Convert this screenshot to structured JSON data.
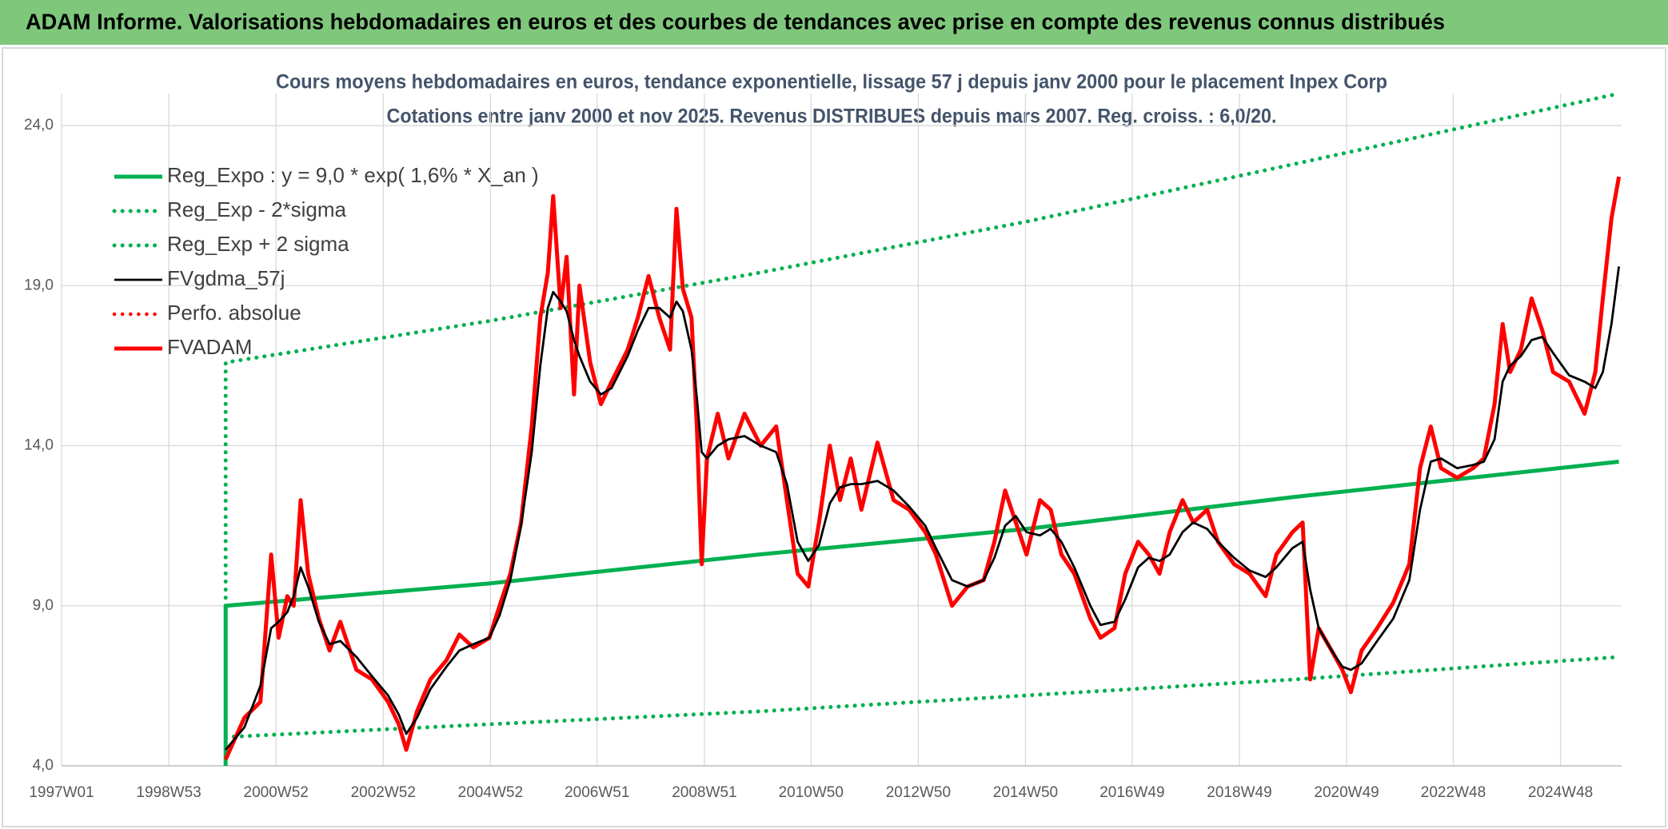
{
  "chart_data": {
    "type": "line",
    "title": "ADAM Informe. Valorisations hebdomadaires en euros et des courbes de tendances avec prise en compte des revenus connus distribués",
    "subtitle": [
      "Cours moyens hebdomadaires en euros, tendance exponentielle, lissage 57 j depuis janv 2000 pour le placement Inpex Corp",
      "Cotations entre janv 2000 et nov 2025. Revenus DISTRIBUES depuis mars 2007. Reg. croiss. : 6,0/20."
    ],
    "xlim": [
      1997,
      2026.1
    ],
    "xticks": [
      {
        "value": 1997.0,
        "label": "1997W01"
      },
      {
        "value": 1999.0,
        "label": "1998W53"
      },
      {
        "value": 2001.0,
        "label": "2000W52"
      },
      {
        "value": 2003.0,
        "label": "2002W52"
      },
      {
        "value": 2005.0,
        "label": "2004W52"
      },
      {
        "value": 2006.99,
        "label": "2006W51"
      },
      {
        "value": 2008.99,
        "label": "2008W51"
      },
      {
        "value": 2010.98,
        "label": "2010W50"
      },
      {
        "value": 2012.98,
        "label": "2012W50"
      },
      {
        "value": 2014.98,
        "label": "2014W50"
      },
      {
        "value": 2016.97,
        "label": "2016W49"
      },
      {
        "value": 2018.97,
        "label": "2018W49"
      },
      {
        "value": 2020.97,
        "label": "2020W49"
      },
      {
        "value": 2022.96,
        "label": "2022W48"
      },
      {
        "value": 2024.96,
        "label": "2024W48"
      }
    ],
    "ylim": [
      4,
      25
    ],
    "yticks": [
      {
        "value": 4,
        "label": "4,0"
      },
      {
        "value": 9,
        "label": "9,0"
      },
      {
        "value": 14,
        "label": "14,0"
      },
      {
        "value": 19,
        "label": "19,0"
      },
      {
        "value": 24,
        "label": "24,0"
      }
    ],
    "grid": true,
    "legend": "upper left",
    "series": [
      {
        "name": "Reg_Expo : y = 9,0 * exp( 1,6% *  X_an )",
        "color": "#00b050",
        "style": "solid",
        "x": [
          2000.06,
          2000.06,
          2005,
          2010,
          2015,
          2020,
          2026.05
        ],
        "values": [
          4.0,
          9.0,
          9.7,
          10.6,
          11.4,
          12.4,
          13.5
        ]
      },
      {
        "name": "Reg_Exp - 2*sigma",
        "color": "#00b050",
        "style": "dotted",
        "x": [
          2000.06,
          2005,
          2010,
          2015,
          2020,
          2026.05
        ],
        "values": [
          4.9,
          5.3,
          5.7,
          6.2,
          6.7,
          7.4
        ]
      },
      {
        "name": "Reg_Exp + 2 sigma",
        "color": "#00b050",
        "style": "dotted",
        "x": [
          2000.06,
          2000.06,
          2005,
          2010,
          2015,
          2020,
          2026.05
        ],
        "values": [
          9.0,
          16.6,
          17.9,
          19.4,
          21.0,
          22.8,
          25.0
        ]
      },
      {
        "name": "FVgdma_57j",
        "color": "#000000",
        "style": "solid",
        "x": [
          2000.06,
          2000.41,
          2000.71,
          2000.91,
          2001.05,
          2001.21,
          2001.33,
          2001.46,
          2001.6,
          2001.8,
          2002.0,
          2002.2,
          2002.5,
          2002.79,
          2003.09,
          2003.29,
          2003.43,
          2003.63,
          2003.88,
          2004.18,
          2004.42,
          2004.68,
          2004.98,
          2005.17,
          2005.37,
          2005.57,
          2005.77,
          2005.93,
          2006.07,
          2006.17,
          2006.31,
          2006.42,
          2006.56,
          2006.66,
          2006.86,
          2007.06,
          2007.26,
          2007.56,
          2007.75,
          2007.95,
          2008.15,
          2008.35,
          2008.47,
          2008.59,
          2008.75,
          2008.85,
          2008.94,
          2009.04,
          2009.24,
          2009.44,
          2009.74,
          2010.04,
          2010.33,
          2010.53,
          2010.73,
          2010.93,
          2011.13,
          2011.33,
          2011.52,
          2011.72,
          2011.92,
          2012.22,
          2012.52,
          2012.81,
          2013.11,
          2013.31,
          2013.61,
          2013.9,
          2014.2,
          2014.4,
          2014.6,
          2014.8,
          2015.0,
          2015.25,
          2015.45,
          2015.65,
          2015.89,
          2016.19,
          2016.38,
          2016.64,
          2016.84,
          2017.08,
          2017.28,
          2017.48,
          2017.67,
          2017.91,
          2018.11,
          2018.37,
          2018.57,
          2018.87,
          2019.16,
          2019.46,
          2019.66,
          2019.96,
          2020.15,
          2020.29,
          2020.45,
          2020.69,
          2020.89,
          2021.05,
          2021.25,
          2021.54,
          2021.84,
          2022.14,
          2022.34,
          2022.54,
          2022.73,
          2023.03,
          2023.33,
          2023.53,
          2023.73,
          2023.88,
          2024.02,
          2024.22,
          2024.42,
          2024.62,
          2024.82,
          2025.12,
          2025.41,
          2025.61,
          2025.75,
          2025.91,
          2026.05
        ],
        "values": [
          4.5,
          5.2,
          6.5,
          8.3,
          8.5,
          8.8,
          9.3,
          10.2,
          9.6,
          8.5,
          7.8,
          7.9,
          7.4,
          6.8,
          6.2,
          5.6,
          5.0,
          5.5,
          6.4,
          7.1,
          7.6,
          7.8,
          8.0,
          8.7,
          9.8,
          11.5,
          13.8,
          16.5,
          18.3,
          18.8,
          18.5,
          18.2,
          17.3,
          16.8,
          16.0,
          15.6,
          15.8,
          16.8,
          17.6,
          18.3,
          18.3,
          18.0,
          18.5,
          18.2,
          17.0,
          15.5,
          13.8,
          13.6,
          14.0,
          14.2,
          14.3,
          14.0,
          13.8,
          12.8,
          11.0,
          10.4,
          10.9,
          12.2,
          12.7,
          12.8,
          12.8,
          12.9,
          12.6,
          12.1,
          11.5,
          10.8,
          9.8,
          9.6,
          9.8,
          10.5,
          11.5,
          11.8,
          11.3,
          11.2,
          11.4,
          11.0,
          10.2,
          9.0,
          8.4,
          8.5,
          9.2,
          10.2,
          10.5,
          10.4,
          10.6,
          11.3,
          11.6,
          11.4,
          11.0,
          10.5,
          10.1,
          9.9,
          10.2,
          10.8,
          11.0,
          9.5,
          8.3,
          7.6,
          7.1,
          7.0,
          7.2,
          7.9,
          8.6,
          9.8,
          12.0,
          13.5,
          13.6,
          13.3,
          13.4,
          13.5,
          14.2,
          16.0,
          16.5,
          16.8,
          17.3,
          17.4,
          16.9,
          16.2,
          16.0,
          15.8,
          16.3,
          17.8,
          19.6
        ]
      },
      {
        "name": "Perfo. absolue",
        "color": "#ff0000",
        "style": "dotted"
      },
      {
        "name": "FVADAM",
        "color": "#ff0000",
        "style": "solid",
        "x": [
          2000.06,
          2000.41,
          2000.71,
          2000.91,
          2001.05,
          2001.21,
          2001.33,
          2001.46,
          2001.6,
          2001.8,
          2002.0,
          2002.2,
          2002.5,
          2002.79,
          2003.09,
          2003.29,
          2003.43,
          2003.63,
          2003.88,
          2004.18,
          2004.42,
          2004.68,
          2004.98,
          2005.17,
          2005.37,
          2005.57,
          2005.77,
          2005.93,
          2006.07,
          2006.17,
          2006.31,
          2006.42,
          2006.56,
          2006.66,
          2006.86,
          2007.06,
          2007.26,
          2007.56,
          2007.75,
          2007.95,
          2008.15,
          2008.35,
          2008.47,
          2008.59,
          2008.75,
          2008.85,
          2008.94,
          2009.04,
          2009.24,
          2009.44,
          2009.74,
          2010.04,
          2010.33,
          2010.53,
          2010.73,
          2010.93,
          2011.13,
          2011.33,
          2011.52,
          2011.72,
          2011.92,
          2012.22,
          2012.52,
          2012.81,
          2013.11,
          2013.31,
          2013.61,
          2013.9,
          2014.2,
          2014.4,
          2014.6,
          2014.8,
          2015.0,
          2015.25,
          2015.45,
          2015.65,
          2015.89,
          2016.19,
          2016.38,
          2016.64,
          2016.84,
          2017.08,
          2017.28,
          2017.48,
          2017.67,
          2017.91,
          2018.11,
          2018.37,
          2018.57,
          2018.87,
          2019.16,
          2019.46,
          2019.66,
          2019.96,
          2020.15,
          2020.29,
          2020.45,
          2020.69,
          2020.89,
          2021.05,
          2021.25,
          2021.54,
          2021.84,
          2022.14,
          2022.34,
          2022.54,
          2022.73,
          2023.03,
          2023.33,
          2023.53,
          2023.73,
          2023.88,
          2024.02,
          2024.22,
          2024.42,
          2024.62,
          2024.82,
          2025.12,
          2025.41,
          2025.61,
          2025.75,
          2025.91,
          2026.05
        ],
        "values": [
          4.2,
          5.5,
          6.0,
          10.6,
          8.0,
          9.3,
          9.0,
          12.3,
          10.0,
          8.6,
          7.6,
          8.5,
          7.0,
          6.7,
          6.0,
          5.3,
          4.5,
          5.7,
          6.7,
          7.3,
          8.1,
          7.7,
          8.0,
          9.0,
          10.0,
          11.6,
          14.6,
          18.0,
          19.4,
          21.8,
          18.3,
          19.9,
          15.6,
          19.0,
          16.6,
          15.3,
          16.0,
          17.0,
          18.0,
          19.3,
          18.0,
          17.0,
          21.4,
          18.9,
          18.0,
          14.6,
          10.3,
          13.6,
          15.0,
          13.6,
          15.0,
          14.0,
          14.6,
          12.3,
          10.0,
          9.6,
          11.6,
          14.0,
          12.3,
          13.6,
          12.0,
          14.1,
          12.3,
          12.0,
          11.3,
          10.6,
          9.0,
          9.6,
          9.8,
          11.0,
          12.6,
          11.6,
          10.6,
          12.3,
          12.0,
          10.6,
          10.0,
          8.6,
          8.0,
          8.3,
          10.0,
          11.0,
          10.6,
          10.0,
          11.3,
          12.3,
          11.6,
          12.0,
          11.0,
          10.3,
          10.0,
          9.3,
          10.6,
          11.3,
          11.6,
          6.7,
          8.3,
          7.6,
          7.0,
          6.3,
          7.6,
          8.3,
          9.1,
          10.3,
          13.3,
          14.6,
          13.3,
          13.0,
          13.3,
          13.6,
          15.3,
          17.8,
          16.3,
          17.0,
          18.6,
          17.6,
          16.3,
          16.0,
          15.0,
          16.3,
          18.6,
          21.1,
          22.4
        ]
      }
    ]
  }
}
